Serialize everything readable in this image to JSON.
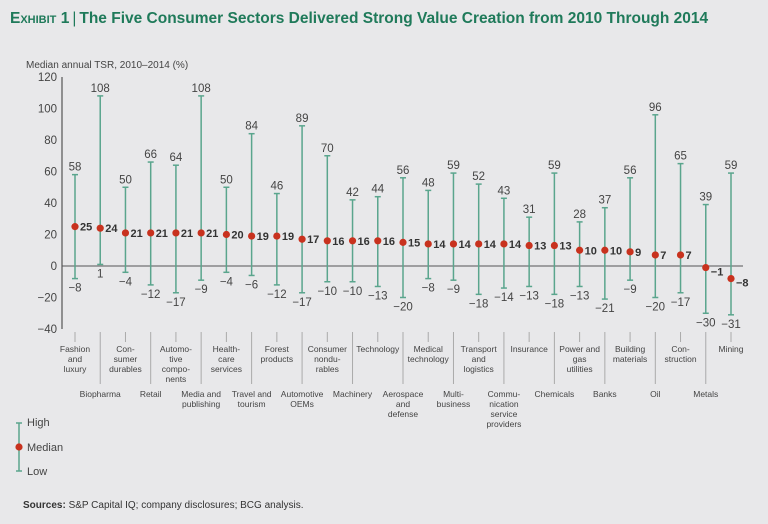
{
  "header": {
    "exhibit": "Exhibit 1",
    "title": "The Five Consumer Sectors Delivered Strong Value Creation from 2010 Through 2014"
  },
  "legend": {
    "high": "High",
    "median": "Median",
    "low": "Low"
  },
  "footer": {
    "sources_label": "Sources:",
    "sources_text": "S&P Capital IQ; company disclosures; BCG analysis."
  },
  "colors": {
    "title": "#1f7a5a",
    "range_line": "#5aa58d",
    "median_dot": "#c8321e",
    "axis": "#555555",
    "background": "#e8e8ea"
  },
  "chart_data": {
    "type": "range-dot",
    "title": "The Five Consumer Sectors Delivered Strong Value Creation from 2010 Through 2014",
    "ylabel": "Median annual TSR, 2010–2014 (%)",
    "xlabel": "",
    "ylim": [
      -40,
      120
    ],
    "yticks": [
      120,
      100,
      80,
      60,
      40,
      20,
      0,
      -20,
      -40
    ],
    "grid": false,
    "legend_position": "bottom-left",
    "categories": [
      "Fashion and luxury",
      "Biopharma",
      "Consumer durables",
      "Retail",
      "Automotive components",
      "Media and publishing",
      "Health-care services",
      "Travel and tourism",
      "Forest products",
      "Automotive OEMs",
      "Consumer nondurables",
      "Machinery",
      "Technology",
      "Aerospace and defense",
      "Medical technology",
      "Multibusiness",
      "Transport and logistics",
      "Communication service providers",
      "Insurance",
      "Chemicals",
      "Power and gas utilities",
      "Banks",
      "Building materials",
      "Oil",
      "Construction",
      "Metals",
      "Mining"
    ],
    "category_label_lines": [
      [
        "Fashion",
        "and",
        "luxury"
      ],
      [
        "Biopharma"
      ],
      [
        "Con-",
        "sumer",
        "durables"
      ],
      [
        "Retail"
      ],
      [
        "Automo-",
        "tive",
        "compo-",
        "nents"
      ],
      [
        "Media and",
        "publishing"
      ],
      [
        "Health-",
        "care",
        "services"
      ],
      [
        "Travel and",
        "tourism"
      ],
      [
        "Forest",
        "products"
      ],
      [
        "Automotive",
        "OEMs"
      ],
      [
        "Consumer",
        "nondu-",
        "rables"
      ],
      [
        "Machinery"
      ],
      [
        "Technology"
      ],
      [
        "Aerospace",
        "and",
        "defense"
      ],
      [
        "Medical",
        "technology"
      ],
      [
        "Multi-",
        "business"
      ],
      [
        "Transport",
        "and",
        "logistics"
      ],
      [
        "Commu-",
        "nication",
        "service",
        "providers"
      ],
      [
        "Insurance"
      ],
      [
        "Chemicals"
      ],
      [
        "Power and",
        "gas",
        "utilities"
      ],
      [
        "Banks"
      ],
      [
        "Building",
        "materials"
      ],
      [
        "Oil"
      ],
      [
        "Con-",
        "struction"
      ],
      [
        "Metals"
      ],
      [
        "Mining"
      ]
    ],
    "series": [
      {
        "name": "High",
        "values": [
          58,
          108,
          50,
          66,
          64,
          108,
          50,
          84,
          46,
          89,
          70,
          42,
          44,
          56,
          48,
          59,
          52,
          43,
          31,
          59,
          28,
          37,
          56,
          96,
          65,
          39,
          59
        ]
      },
      {
        "name": "Median",
        "values": [
          25,
          24,
          21,
          21,
          21,
          21,
          20,
          19,
          19,
          17,
          16,
          16,
          16,
          15,
          14,
          14,
          14,
          14,
          13,
          13,
          10,
          10,
          9,
          7,
          7,
          -1,
          -8
        ]
      },
      {
        "name": "Low",
        "values": [
          -8,
          1,
          -4,
          -12,
          -17,
          -9,
          -4,
          -6,
          -12,
          -17,
          -10,
          -10,
          -13,
          -20,
          -8,
          -9,
          -18,
          -14,
          -13,
          -18,
          -13,
          -21,
          -9,
          -20,
          -17,
          -30,
          -31
        ]
      }
    ]
  }
}
